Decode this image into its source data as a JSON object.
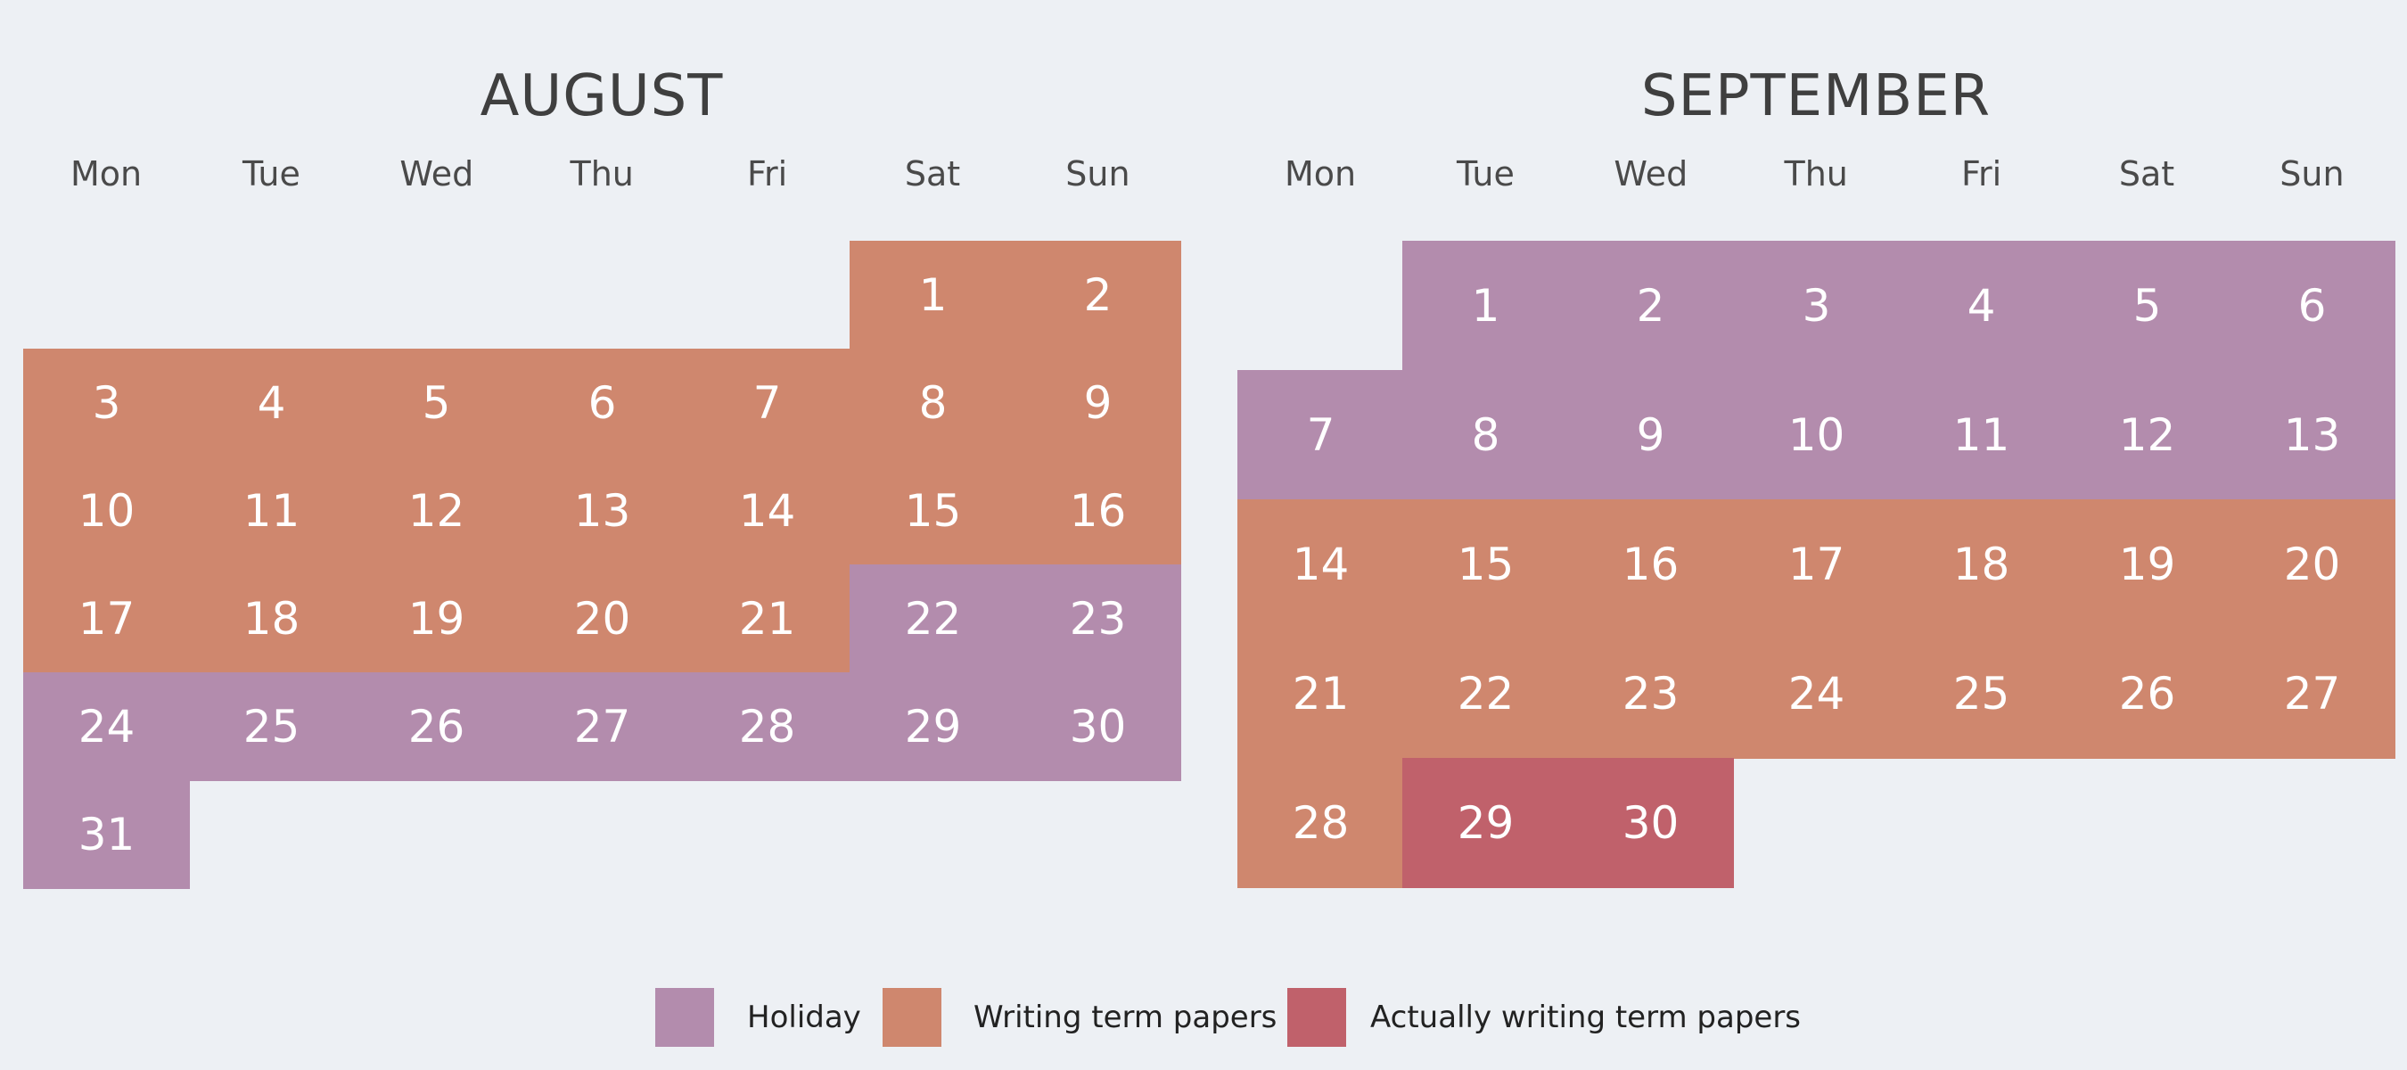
{
  "colors": {
    "background": "#edf0f4",
    "holiday": "#b38cad",
    "writing": "#cf876e",
    "actually_writing": "#c0616b"
  },
  "months": [
    {
      "title": "AUGUST",
      "weekdays": [
        "Mon",
        "Tue",
        "Wed",
        "Thu",
        "Fri",
        "Sat",
        "Sun"
      ],
      "days": [
        {
          "day": "1",
          "category": "writing"
        },
        {
          "day": "2",
          "category": "writing"
        },
        {
          "day": "3",
          "category": "writing"
        },
        {
          "day": "4",
          "category": "writing"
        },
        {
          "day": "5",
          "category": "writing"
        },
        {
          "day": "6",
          "category": "writing"
        },
        {
          "day": "7",
          "category": "writing"
        },
        {
          "day": "8",
          "category": "writing"
        },
        {
          "day": "9",
          "category": "writing"
        },
        {
          "day": "10",
          "category": "writing"
        },
        {
          "day": "11",
          "category": "writing"
        },
        {
          "day": "12",
          "category": "writing"
        },
        {
          "day": "13",
          "category": "writing"
        },
        {
          "day": "14",
          "category": "writing"
        },
        {
          "day": "15",
          "category": "writing"
        },
        {
          "day": "16",
          "category": "writing"
        },
        {
          "day": "17",
          "category": "writing"
        },
        {
          "day": "18",
          "category": "writing"
        },
        {
          "day": "19",
          "category": "writing"
        },
        {
          "day": "20",
          "category": "writing"
        },
        {
          "day": "21",
          "category": "writing"
        },
        {
          "day": "22",
          "category": "holiday"
        },
        {
          "day": "23",
          "category": "holiday"
        },
        {
          "day": "24",
          "category": "holiday"
        },
        {
          "day": "25",
          "category": "holiday"
        },
        {
          "day": "26",
          "category": "holiday"
        },
        {
          "day": "27",
          "category": "holiday"
        },
        {
          "day": "28",
          "category": "holiday"
        },
        {
          "day": "29",
          "category": "holiday"
        },
        {
          "day": "30",
          "category": "holiday"
        },
        {
          "day": "31",
          "category": "holiday"
        }
      ]
    },
    {
      "title": "SEPTEMBER",
      "weekdays": [
        "Mon",
        "Tue",
        "Wed",
        "Thu",
        "Fri",
        "Sat",
        "Sun"
      ],
      "days": [
        {
          "day": "1",
          "category": "holiday"
        },
        {
          "day": "2",
          "category": "holiday"
        },
        {
          "day": "3",
          "category": "holiday"
        },
        {
          "day": "4",
          "category": "holiday"
        },
        {
          "day": "5",
          "category": "holiday"
        },
        {
          "day": "6",
          "category": "holiday"
        },
        {
          "day": "7",
          "category": "holiday"
        },
        {
          "day": "8",
          "category": "holiday"
        },
        {
          "day": "9",
          "category": "holiday"
        },
        {
          "day": "10",
          "category": "holiday"
        },
        {
          "day": "11",
          "category": "holiday"
        },
        {
          "day": "12",
          "category": "holiday"
        },
        {
          "day": "13",
          "category": "holiday"
        },
        {
          "day": "14",
          "category": "writing"
        },
        {
          "day": "15",
          "category": "writing"
        },
        {
          "day": "16",
          "category": "writing"
        },
        {
          "day": "17",
          "category": "writing"
        },
        {
          "day": "18",
          "category": "writing"
        },
        {
          "day": "19",
          "category": "writing"
        },
        {
          "day": "20",
          "category": "writing"
        },
        {
          "day": "21",
          "category": "writing"
        },
        {
          "day": "22",
          "category": "writing"
        },
        {
          "day": "23",
          "category": "writing"
        },
        {
          "day": "24",
          "category": "writing"
        },
        {
          "day": "25",
          "category": "writing"
        },
        {
          "day": "26",
          "category": "writing"
        },
        {
          "day": "27",
          "category": "writing"
        },
        {
          "day": "28",
          "category": "writing"
        },
        {
          "day": "29",
          "category": "actually_writing"
        },
        {
          "day": "30",
          "category": "actually_writing"
        }
      ]
    }
  ],
  "legend": [
    {
      "category": "holiday",
      "label": "Holiday"
    },
    {
      "category": "writing",
      "label": "Writing term papers"
    },
    {
      "category": "actually_writing",
      "label": "Actually writing term papers"
    }
  ]
}
